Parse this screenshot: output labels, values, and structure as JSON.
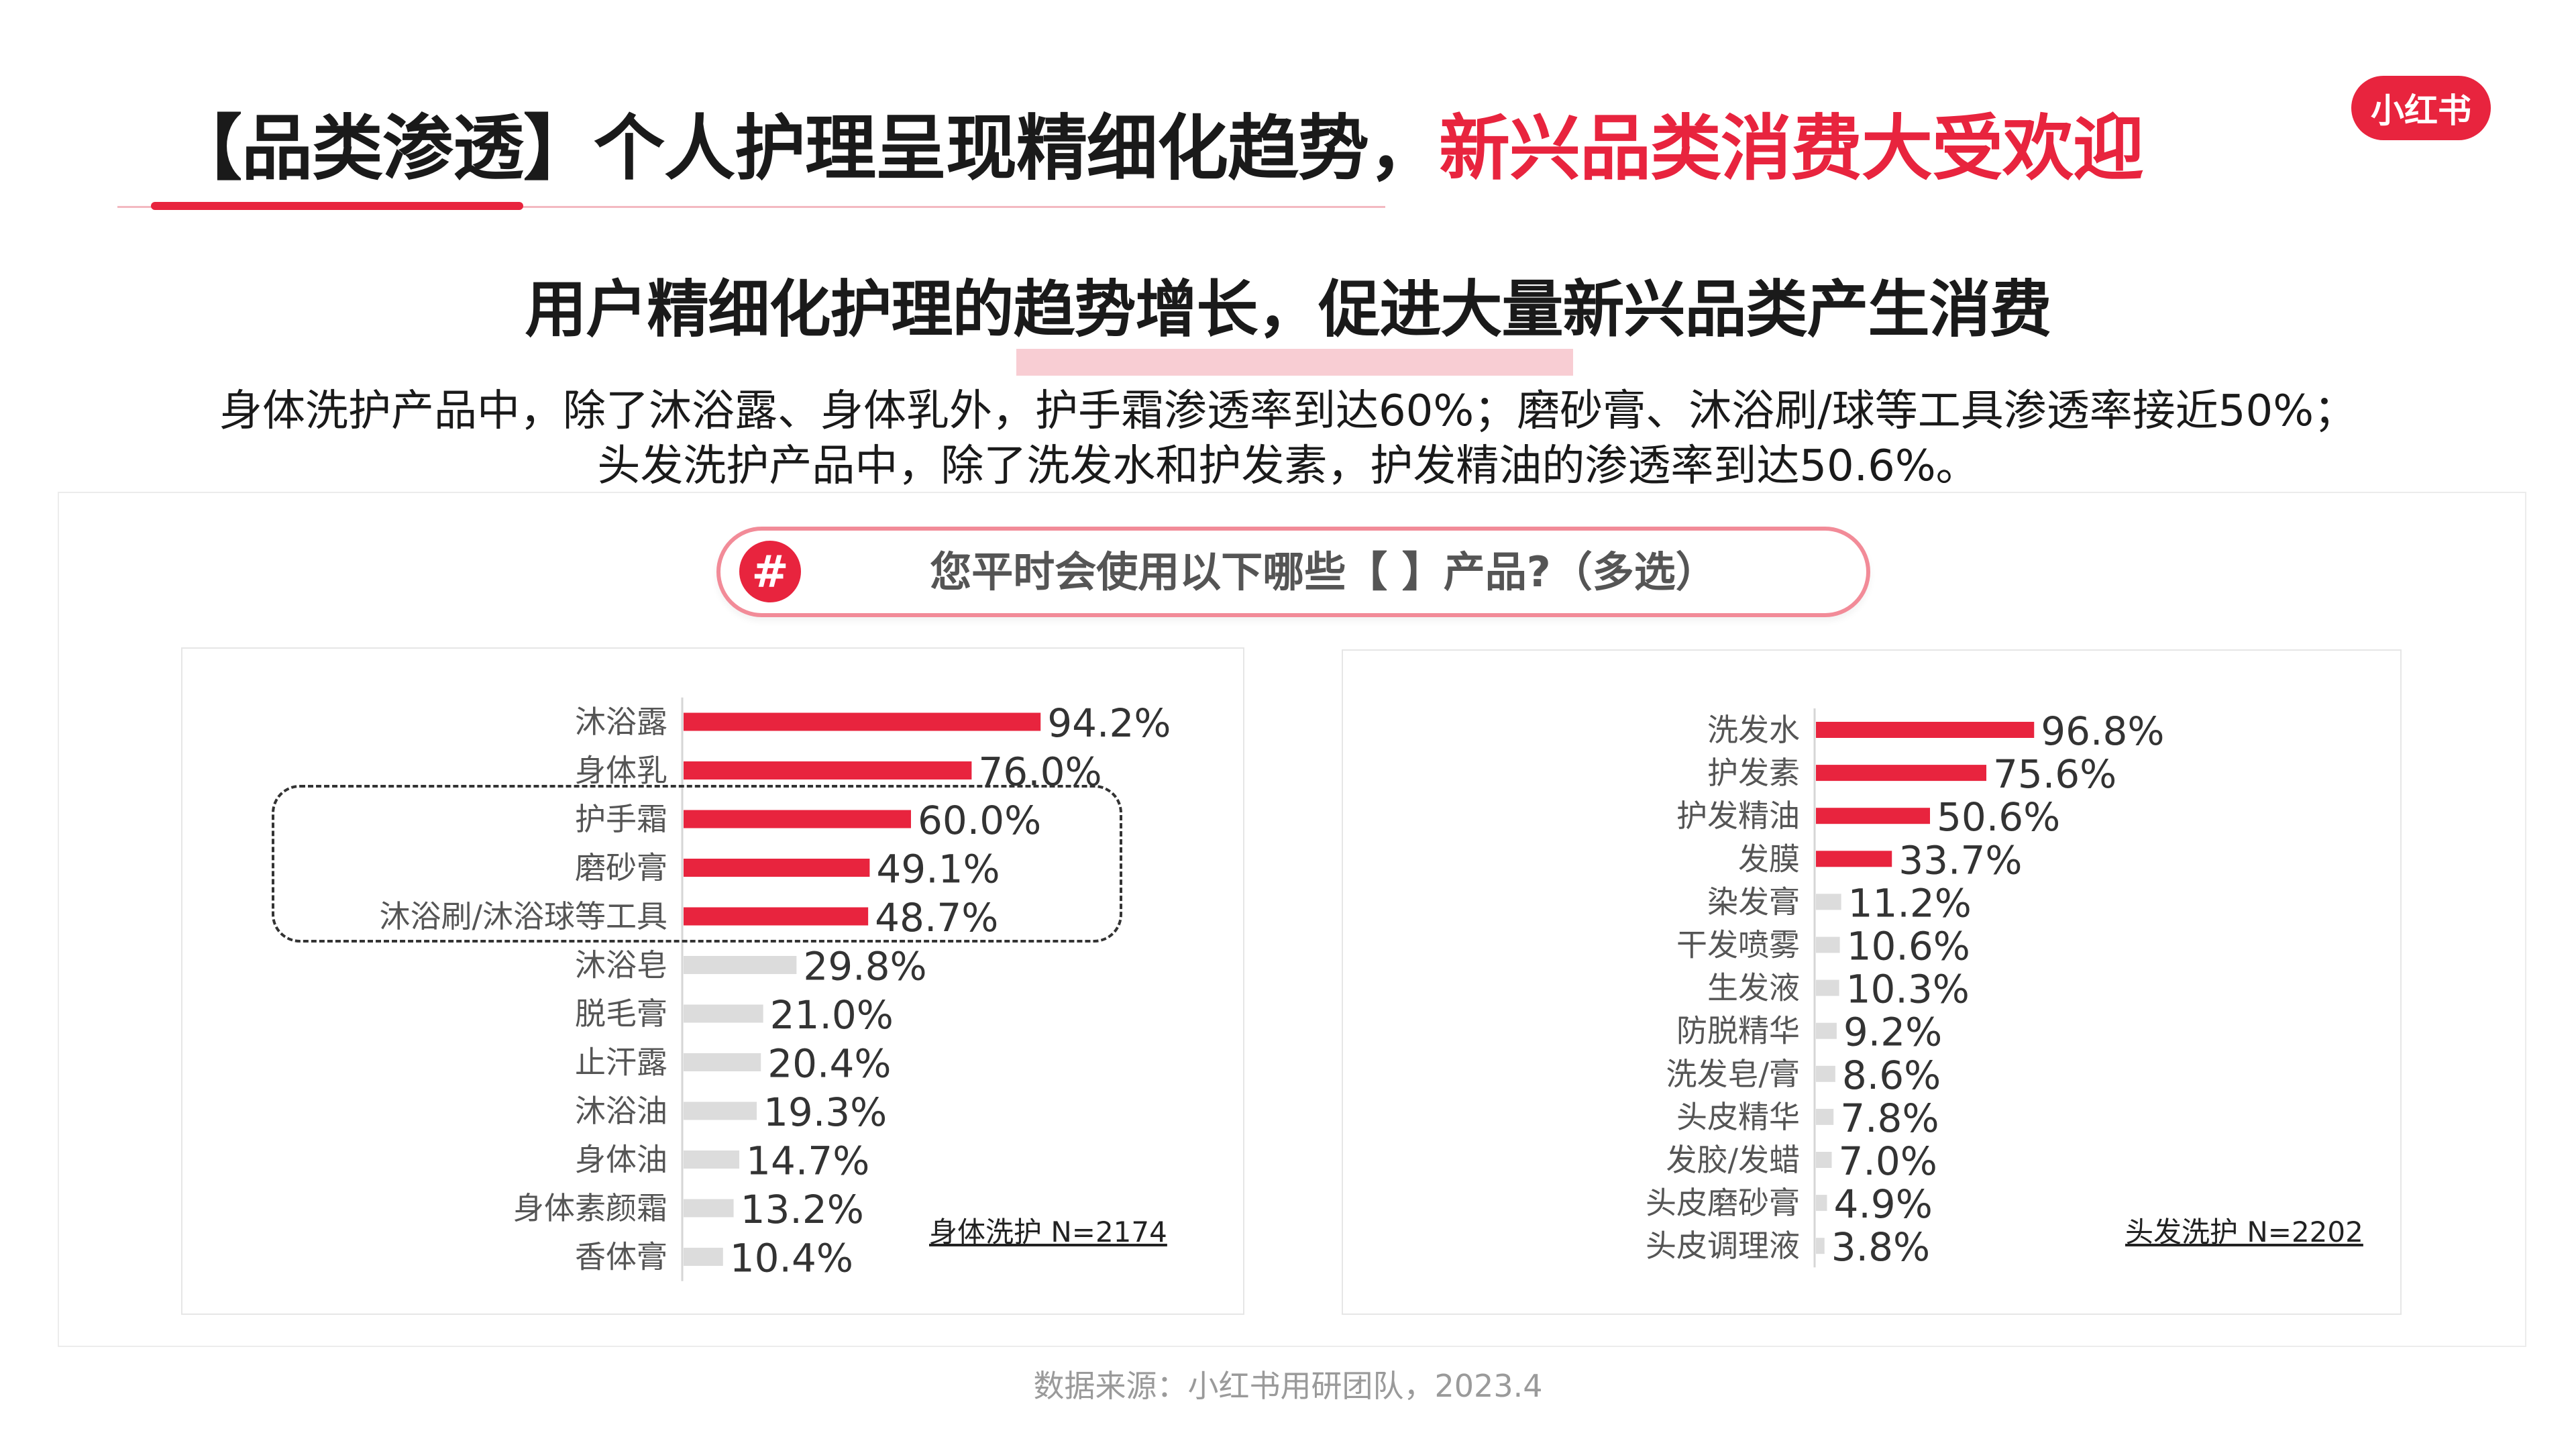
{
  "title": {
    "main": "【品类渗透】个人护理呈现精细化趋势，",
    "accent": "新兴品类消费大受欢迎"
  },
  "logo": {
    "text": "小红书"
  },
  "subtitle": "用户精细化护理的趋势增长，促进大量新兴品类产生消费",
  "description": {
    "line1": "身体洗护产品中，除了沐浴露、身体乳外，护手霜渗透率到达60%；磨砂膏、沐浴刷/球等工具渗透率接近50%；",
    "line2": "头发洗护产品中，除了洗发水和护发素，护发精油的渗透率到达50.6%。"
  },
  "question": {
    "icon": "#",
    "text": "您平时会使用以下哪些【 】产品?（多选）"
  },
  "colors": {
    "highlight": "#e8243e",
    "muted": "#dcdcdc",
    "value_text": "#333333",
    "label_text": "#555555"
  },
  "chart_data": [
    {
      "type": "bar",
      "orientation": "horizontal",
      "categories": [
        "沐浴露",
        "身体乳",
        "护手霜",
        "磨砂膏",
        "沐浴刷/沐浴球等工具",
        "沐浴皂",
        "脱毛膏",
        "止汗露",
        "沐浴油",
        "身体油",
        "身体素颜霜",
        "香体膏"
      ],
      "values": [
        94.2,
        76.0,
        60.0,
        49.1,
        48.7,
        29.8,
        21.0,
        20.4,
        19.3,
        14.7,
        13.2,
        10.4
      ],
      "value_labels": [
        "94.2%",
        "76.0%",
        "60.0%",
        "49.1%",
        "48.7%",
        "29.8%",
        "21.0%",
        "20.4%",
        "19.3%",
        "14.7%",
        "13.2%",
        "10.4%"
      ],
      "highlight_count": 5,
      "unit": "%",
      "note": "身体洗护 N=2174"
    },
    {
      "type": "bar",
      "orientation": "horizontal",
      "categories": [
        "洗发水",
        "护发素",
        "护发精油",
        "发膜",
        "染发膏",
        "干发喷雾",
        "生发液",
        "防脱精华",
        "洗发皂/膏",
        "头皮精华",
        "发胶/发蜡",
        "头皮磨砂膏",
        "头皮调理液"
      ],
      "values": [
        96.8,
        75.6,
        50.6,
        33.7,
        11.2,
        10.6,
        10.3,
        9.2,
        8.6,
        7.8,
        7.0,
        4.9,
        3.8
      ],
      "value_labels": [
        "96.8%",
        "75.6%",
        "50.6%",
        "33.7%",
        "11.2%",
        "10.6%",
        "10.3%",
        "9.2%",
        "8.6%",
        "7.8%",
        "7.0%",
        "4.9%",
        "3.8%"
      ],
      "highlight_count": 4,
      "unit": "%",
      "note": "头发洗护 N=2202"
    }
  ],
  "source": "数据来源：小红书用研团队，2023.4"
}
